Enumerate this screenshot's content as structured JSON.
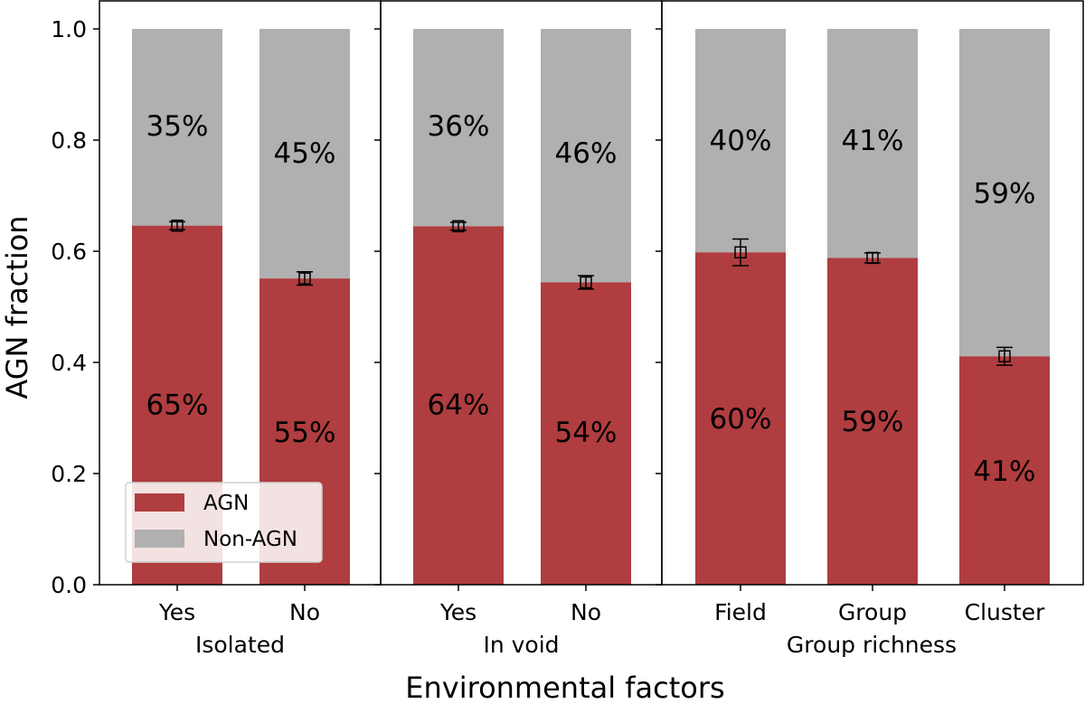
{
  "chart_data": {
    "type": "bar",
    "stacked": true,
    "xlabel": "Environmental factors",
    "ylabel": "AGN fraction",
    "ylim": [
      0,
      1.0
    ],
    "yticks": [
      "0.0",
      "0.2",
      "0.4",
      "0.6",
      "0.8",
      "1.0"
    ],
    "grid": false,
    "legend": {
      "placement": "lower-left of first panel",
      "entries": [
        {
          "label": "AGN",
          "color": "#b03d3f"
        },
        {
          "label": "Non-AGN",
          "color": "#b0b0b0"
        }
      ]
    },
    "panels": [
      {
        "group_label": "Isolated",
        "categories": [
          "Yes",
          "No"
        ],
        "agn": [
          0.646,
          0.551
        ],
        "agn_err": [
          0.007,
          0.012
        ],
        "agn_pct_labels": [
          "65%",
          "55%"
        ],
        "non_agn_pct_labels": [
          "35%",
          "45%"
        ]
      },
      {
        "group_label": "In void",
        "categories": [
          "Yes",
          "No"
        ],
        "agn": [
          0.645,
          0.544
        ],
        "agn_err": [
          0.007,
          0.012
        ],
        "agn_pct_labels": [
          "64%",
          "54%"
        ],
        "non_agn_pct_labels": [
          "36%",
          "46%"
        ]
      },
      {
        "group_label": "Group richness",
        "categories": [
          "Field",
          "Group",
          "Cluster"
        ],
        "agn": [
          0.598,
          0.588
        ],
        "agn_err": [
          0.024,
          0.009
        ],
        "agn_pct_labels": [
          "60%",
          "59%",
          "41%"
        ],
        "non_agn_pct_labels": [
          "40%",
          "41%",
          "59%"
        ]
      }
    ],
    "colors": {
      "agn": "#b03d3f",
      "non_agn": "#b0b0b0"
    },
    "cluster_agn": 0.411,
    "cluster_err": 0.016
  }
}
